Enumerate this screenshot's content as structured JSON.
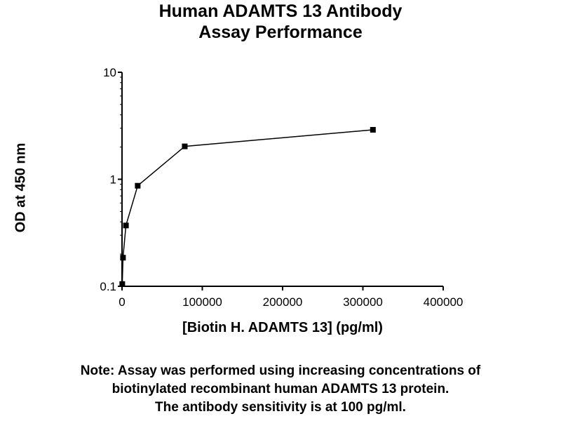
{
  "chart_data": {
    "type": "line",
    "title": "Human ADAMTS 13 Antibody",
    "subtitle": "Assay Performance",
    "xlabel": "[Biotin H. ADAMTS 13] (pg/ml)",
    "ylabel": "OD at 450 nm",
    "xlim": [
      0,
      400000
    ],
    "ylim": [
      0.1,
      10
    ],
    "yscale": "log",
    "xticks": [
      "0",
      "100000",
      "200000",
      "300000",
      "400000"
    ],
    "yticks": [
      "0.1",
      "1",
      "10"
    ],
    "grid": false,
    "x": [
      305,
      1220,
      4880,
      19530,
      78125,
      312500
    ],
    "y": [
      0.105,
      0.185,
      0.37,
      0.87,
      2.03,
      2.9
    ],
    "color": "#000000"
  },
  "note": [
    "Note: Assay was performed using increasing concentrations of",
    "biotinylated recombinant human ADAMTS 13 protein.",
    "The antibody sensitivity is at 100 pg/ml."
  ]
}
